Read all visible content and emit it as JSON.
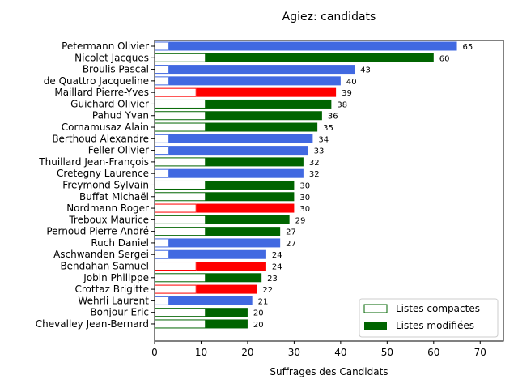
{
  "chart_data": {
    "type": "bar",
    "orientation": "horizontal",
    "title": "Agiez: candidats",
    "xlabel": "Suffrages des Candidats",
    "ylabel": "",
    "xlim": [
      0,
      75
    ],
    "xticks": [
      0,
      10,
      20,
      30,
      40,
      50,
      60,
      70
    ],
    "grid": false,
    "legend_position": "bottom-right",
    "legend": [
      {
        "label": "Listes compactes",
        "style": "outline",
        "color": "#006400"
      },
      {
        "label": "Listes modifiées",
        "style": "filled",
        "color": "#006400"
      }
    ],
    "candidates": [
      {
        "name": "Petermann Olivier",
        "total": 65,
        "compact": 3,
        "color": "#4169e1"
      },
      {
        "name": "Nicolet Jacques",
        "total": 60,
        "compact": 11,
        "color": "#006400"
      },
      {
        "name": "Broulis Pascal",
        "total": 43,
        "compact": 3,
        "color": "#4169e1"
      },
      {
        "name": "de Quattro Jacqueline",
        "total": 40,
        "compact": 3,
        "color": "#4169e1"
      },
      {
        "name": "Maillard Pierre-Yves",
        "total": 39,
        "compact": 9,
        "color": "#ff0000"
      },
      {
        "name": "Guichard Olivier",
        "total": 38,
        "compact": 11,
        "color": "#006400"
      },
      {
        "name": "Pahud Yvan",
        "total": 36,
        "compact": 11,
        "color": "#006400"
      },
      {
        "name": "Cornamusaz Alain",
        "total": 35,
        "compact": 11,
        "color": "#006400"
      },
      {
        "name": "Berthoud Alexandre",
        "total": 34,
        "compact": 3,
        "color": "#4169e1"
      },
      {
        "name": "Feller Olivier",
        "total": 33,
        "compact": 3,
        "color": "#4169e1"
      },
      {
        "name": "Thuillard Jean-François",
        "total": 32,
        "compact": 11,
        "color": "#006400"
      },
      {
        "name": "Cretegny Laurence",
        "total": 32,
        "compact": 3,
        "color": "#4169e1"
      },
      {
        "name": "Freymond Sylvain",
        "total": 30,
        "compact": 11,
        "color": "#006400"
      },
      {
        "name": "Buffat Michaël",
        "total": 30,
        "compact": 11,
        "color": "#006400"
      },
      {
        "name": "Nordmann Roger",
        "total": 30,
        "compact": 9,
        "color": "#ff0000"
      },
      {
        "name": "Treboux Maurice",
        "total": 29,
        "compact": 11,
        "color": "#006400"
      },
      {
        "name": "Pernoud Pierre André",
        "total": 27,
        "compact": 11,
        "color": "#006400"
      },
      {
        "name": "Ruch Daniel",
        "total": 27,
        "compact": 3,
        "color": "#4169e1"
      },
      {
        "name": "Aschwanden Sergei",
        "total": 24,
        "compact": 3,
        "color": "#4169e1"
      },
      {
        "name": "Bendahan Samuel",
        "total": 24,
        "compact": 9,
        "color": "#ff0000"
      },
      {
        "name": "Jobin Philippe",
        "total": 23,
        "compact": 11,
        "color": "#006400"
      },
      {
        "name": "Crottaz Brigitte",
        "total": 22,
        "compact": 9,
        "color": "#ff0000"
      },
      {
        "name": "Wehrli Laurent",
        "total": 21,
        "compact": 3,
        "color": "#4169e1"
      },
      {
        "name": "Bonjour Eric",
        "total": 20,
        "compact": 11,
        "color": "#006400"
      },
      {
        "name": "Chevalley Jean-Bernard",
        "total": 20,
        "compact": 11,
        "color": "#006400"
      }
    ]
  }
}
